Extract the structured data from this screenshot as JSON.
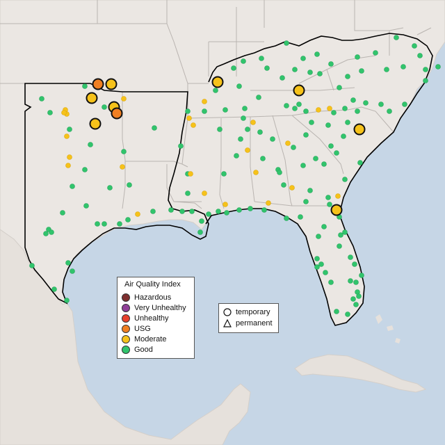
{
  "legend": {
    "title": "Air Quality Index",
    "categories": [
      {
        "label": "Hazardous",
        "color": "#7e2f2f"
      },
      {
        "label": "Very Unhealthy",
        "color": "#8f3f97"
      },
      {
        "label": "Unhealthy",
        "color": "#e8412c"
      },
      {
        "label": "USG",
        "color": "#f07f22"
      },
      {
        "label": "Moderate",
        "color": "#f6c21a"
      },
      {
        "label": "Good",
        "color": "#31c46c"
      }
    ]
  },
  "monitor_types": [
    {
      "label": "temporary",
      "icon": "circle-outline-icon"
    },
    {
      "label": "permanent",
      "icon": "triangle-outline-icon"
    }
  ],
  "colors": {
    "ocean": "#c6d6e6",
    "land": "#ebe7e3",
    "region_border": "#000000",
    "state_border": "#b9b4b0"
  }
}
